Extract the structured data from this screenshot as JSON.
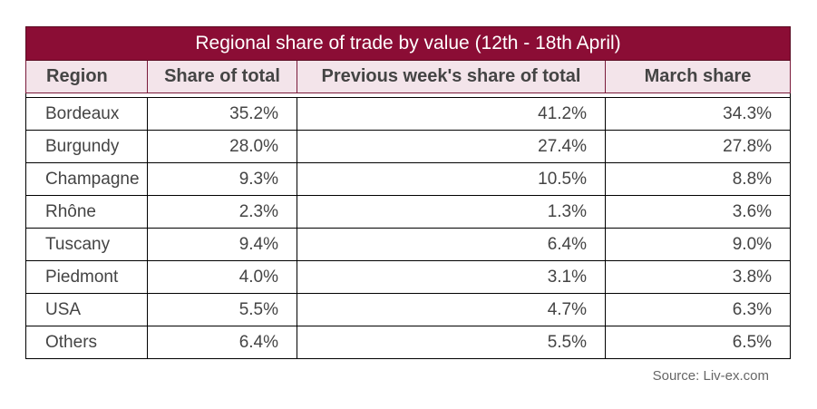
{
  "title": "Regional share of trade by value (12th - 18th April)",
  "columns": [
    "Region",
    "Share of total",
    "Previous week's share of total",
    "March share"
  ],
  "rows": [
    {
      "region": "Bordeaux",
      "share": "35.2%",
      "prev": "41.2%",
      "march": "34.3%"
    },
    {
      "region": "Burgundy",
      "share": "28.0%",
      "prev": "27.4%",
      "march": "27.8%"
    },
    {
      "region": "Champagne",
      "share": "9.3%",
      "prev": "10.5%",
      "march": "8.8%"
    },
    {
      "region": "Rhône",
      "share": "2.3%",
      "prev": "1.3%",
      "march": "3.6%"
    },
    {
      "region": "Tuscany",
      "share": "9.4%",
      "prev": "6.4%",
      "march": "9.0%"
    },
    {
      "region": "Piedmont",
      "share": "4.0%",
      "prev": "3.1%",
      "march": "3.8%"
    },
    {
      "region": "USA",
      "share": "5.5%",
      "prev": "4.7%",
      "march": "6.3%"
    },
    {
      "region": "Others",
      "share": "6.4%",
      "prev": "5.5%",
      "march": "6.5%"
    }
  ],
  "source": "Source: Liv-ex.com",
  "colors": {
    "title_bg": "#8b0d35",
    "header_bg": "#f3e4ea",
    "text": "#444444"
  }
}
